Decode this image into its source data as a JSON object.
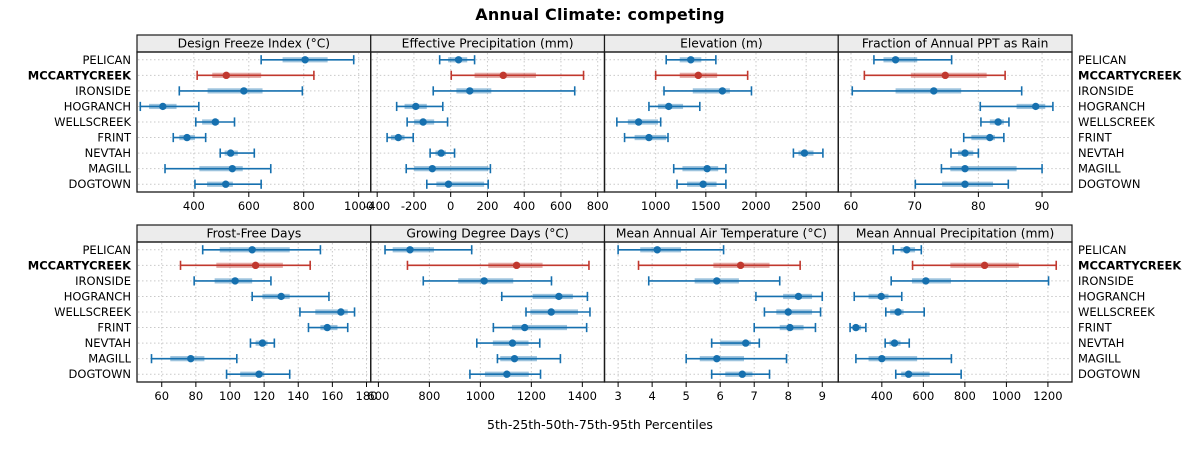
{
  "title": "Annual Climate: competing",
  "caption": "5th-25th-50th-75th-95th Percentiles",
  "sites": [
    "PELICAN",
    "MCCARTYCREEK",
    "IRONSIDE",
    "HOGRANCH",
    "WELLSCREEK",
    "FRINT",
    "NEVTAH",
    "MAGILL",
    "DOGTOWN"
  ],
  "highlight_site": "MCCARTYCREEK",
  "percentile_labels": [
    "5th",
    "25th",
    "50th",
    "75th",
    "95th"
  ],
  "colors": {
    "series": "#1670AF",
    "highlight": "#C1382E",
    "grid": "#C9C9C9",
    "strip_bg": "#ECECEC",
    "border": "#1A1A1A",
    "text": "#000000"
  },
  "chart_data": [
    {
      "type": "scatter",
      "variant": "percentile-dotplot",
      "row": 1,
      "title": "Design Freeze Index (°C)",
      "xlim": [
        193,
        1044
      ],
      "ticks": [
        400,
        600,
        800,
        1000
      ],
      "grid": true,
      "values": {
        "PELICAN": [
          645,
          723,
          805,
          887,
          982
        ],
        "MCCARTYCREEK": [
          412,
          467,
          518,
          645,
          837
        ],
        "IRONSIDE": [
          347,
          450,
          582,
          650,
          795
        ],
        "HOGRANCH": [
          205,
          237,
          287,
          337,
          418
        ],
        "WELLSCREEK": [
          407,
          430,
          478,
          492,
          548
        ],
        "FRINT": [
          325,
          347,
          375,
          404,
          443
        ],
        "NEVTAH": [
          496,
          512,
          534,
          560,
          620
        ],
        "MAGILL": [
          295,
          420,
          540,
          578,
          680
        ],
        "DOGTOWN": [
          404,
          448,
          516,
          542,
          645
        ]
      }
    },
    {
      "type": "scatter",
      "variant": "percentile-dotplot",
      "row": 1,
      "title": "Effective Precipitation (mm)",
      "xlim": [
        -435,
        837
      ],
      "ticks": [
        -400,
        -200,
        0,
        200,
        400,
        600,
        800
      ],
      "grid": true,
      "values": {
        "PELICAN": [
          -60,
          -14,
          43,
          90,
          130
        ],
        "MCCARTYCREEK": [
          3,
          130,
          286,
          464,
          723
        ],
        "IRONSIDE": [
          -95,
          31,
          104,
          221,
          675
        ],
        "HOGRANCH": [
          -294,
          -251,
          -190,
          -130,
          -43
        ],
        "WELLSCREEK": [
          -237,
          -199,
          -150,
          -90,
          -17
        ],
        "FRINT": [
          -346,
          -325,
          -285,
          -251,
          -204
        ],
        "NEVTAH": [
          -112,
          -83,
          -52,
          -26,
          21
        ],
        "MAGILL": [
          -242,
          -199,
          -100,
          205,
          216
        ],
        "DOGTOWN": [
          -130,
          -78,
          -12,
          182,
          204
        ]
      }
    },
    {
      "type": "scatter",
      "variant": "percentile-dotplot",
      "row": 1,
      "title": "Elevation (m)",
      "xlim": [
        490,
        2820
      ],
      "ticks": [
        1000,
        1500,
        2000,
        2500
      ],
      "grid": true,
      "values": {
        "PELICAN": [
          1105,
          1240,
          1350,
          1455,
          1600
        ],
        "MCCARTYCREEK": [
          1000,
          1240,
          1425,
          1613,
          1917
        ],
        "IRONSIDE": [
          1083,
          1370,
          1665,
          1740,
          1955
        ],
        "HOGRANCH": [
          933,
          1023,
          1130,
          1273,
          1440
        ],
        "WELLSCREEK": [
          613,
          723,
          830,
          1023,
          1050
        ],
        "FRINT": [
          690,
          790,
          933,
          1105,
          1123
        ],
        "NEVTAH": [
          2373,
          2423,
          2483,
          2573,
          2667
        ],
        "MAGILL": [
          1180,
          1267,
          1513,
          1623,
          1700
        ],
        "DOGTOWN": [
          1213,
          1313,
          1473,
          1607,
          1700
        ]
      }
    },
    {
      "type": "scatter",
      "variant": "percentile-dotplot",
      "row": 1,
      "title": "Fraction of Annual PPT as Rain",
      "xlim": [
        58,
        94.7
      ],
      "ticks": [
        60,
        70,
        80,
        90
      ],
      "grid": true,
      "values": {
        "PELICAN": [
          63.6,
          65.1,
          67,
          70.4,
          75.8
        ],
        "MCCARTYCREEK": [
          62.1,
          69.4,
          74.8,
          81.3,
          84.2
        ],
        "IRONSIDE": [
          60.2,
          67,
          73,
          77.3,
          86.8
        ],
        "HOGRANCH": [
          80.3,
          86,
          89,
          90.5,
          91.7
        ],
        "WELLSCREEK": [
          80.4,
          81.8,
          83.1,
          84,
          84.8
        ],
        "FRINT": [
          77.7,
          78.9,
          81.8,
          82.6,
          84
        ],
        "NEVTAH": [
          75.7,
          76.8,
          77.9,
          79.2,
          80
        ],
        "MAGILL": [
          74.2,
          75.6,
          77.9,
          86,
          90
        ],
        "DOGTOWN": [
          70.1,
          74.3,
          77.9,
          82.3,
          84.7
        ]
      }
    },
    {
      "type": "scatter",
      "variant": "percentile-dotplot",
      "row": 2,
      "title": "Frost-Free Days",
      "xlim": [
        45.5,
        182.5
      ],
      "ticks": [
        60,
        80,
        100,
        120,
        140,
        160,
        180
      ],
      "grid": true,
      "values": {
        "PELICAN": [
          84,
          94,
          113,
          135,
          153
        ],
        "MCCARTYCREEK": [
          71,
          92,
          115,
          131,
          147
        ],
        "IRONSIDE": [
          79,
          91,
          103,
          113,
          124
        ],
        "HOGRANCH": [
          113,
          119,
          130,
          135,
          158
        ],
        "WELLSCREEK": [
          141,
          150,
          165,
          169,
          173
        ],
        "FRINT": [
          146,
          153,
          157,
          163,
          169
        ],
        "NEVTAH": [
          112,
          115,
          119,
          122,
          126
        ],
        "MAGILL": [
          54,
          65,
          77,
          85,
          104
        ],
        "DOGTOWN": [
          98,
          106,
          117,
          120,
          135
        ]
      }
    },
    {
      "type": "scatter",
      "variant": "percentile-dotplot",
      "row": 2,
      "title": "Growing Degree Days (°C)",
      "xlim": [
        570,
        1487
      ],
      "ticks": [
        600,
        800,
        1000,
        1200,
        1400
      ],
      "grid": true,
      "values": {
        "PELICAN": [
          626,
          656,
          724,
          818,
          966
        ],
        "MCCARTYCREEK": [
          714,
          1031,
          1142,
          1244,
          1426
        ],
        "IRONSIDE": [
          776,
          913,
          1015,
          1129,
          1279
        ],
        "HOGRANCH": [
          1084,
          1205,
          1308,
          1363,
          1420
        ],
        "WELLSCREEK": [
          1179,
          1196,
          1278,
          1383,
          1430
        ],
        "FRINT": [
          1051,
          1124,
          1174,
          1340,
          1417
        ],
        "NEVTAH": [
          986,
          1049,
          1126,
          1189,
          1233
        ],
        "MAGILL": [
          1067,
          1078,
          1134,
          1222,
          1314
        ],
        "DOGTOWN": [
          959,
          1018,
          1104,
          1190,
          1236
        ]
      }
    },
    {
      "type": "scatter",
      "variant": "percentile-dotplot",
      "row": 2,
      "title": "Mean Annual Air Temperature (°C)",
      "xlim": [
        2.6,
        9.47
      ],
      "ticks": [
        3,
        4,
        5,
        6,
        7,
        8,
        9
      ],
      "grid": true,
      "values": {
        "PELICAN": [
          3,
          3.65,
          4.15,
          4.85,
          6.1
        ],
        "MCCARTYCREEK": [
          3.6,
          5.8,
          6.6,
          7.45,
          8.35
        ],
        "IRONSIDE": [
          3.9,
          5.25,
          5.9,
          6.55,
          7.75
        ],
        "HOGRANCH": [
          7.05,
          7.85,
          8.3,
          8.7,
          9
        ],
        "WELLSCREEK": [
          7.3,
          7.65,
          8,
          8.7,
          8.95
        ],
        "FRINT": [
          7,
          7.75,
          8.05,
          8.45,
          8.8
        ],
        "NEVTAH": [
          5.75,
          6,
          6.75,
          6.9,
          7.15
        ],
        "MAGILL": [
          5,
          5.4,
          5.9,
          6.7,
          7.95
        ],
        "DOGTOWN": [
          5.75,
          6.15,
          6.65,
          6.95,
          7.45
        ]
      }
    },
    {
      "type": "scatter",
      "variant": "percentile-dotplot",
      "row": 2,
      "title": "Mean Annual Precipitation (mm)",
      "xlim": [
        190,
        1316
      ],
      "ticks": [
        400,
        600,
        800,
        1000,
        1200
      ],
      "grid": true,
      "values": {
        "PELICAN": [
          455,
          490,
          520,
          560,
          590
        ],
        "MCCARTYCREEK": [
          548,
          730,
          895,
          1060,
          1240
        ],
        "IRONSIDE": [
          445,
          545,
          612,
          733,
          1203
        ],
        "HOGRANCH": [
          267,
          336,
          397,
          432,
          496
        ],
        "WELLSCREEK": [
          419,
          440,
          478,
          505,
          604
        ],
        "FRINT": [
          247,
          259,
          275,
          300,
          323
        ],
        "NEVTAH": [
          416,
          437,
          461,
          490,
          532
        ],
        "MAGILL": [
          275,
          336,
          400,
          570,
          735
        ],
        "DOGTOWN": [
          467,
          493,
          529,
          630,
          782
        ]
      }
    }
  ]
}
